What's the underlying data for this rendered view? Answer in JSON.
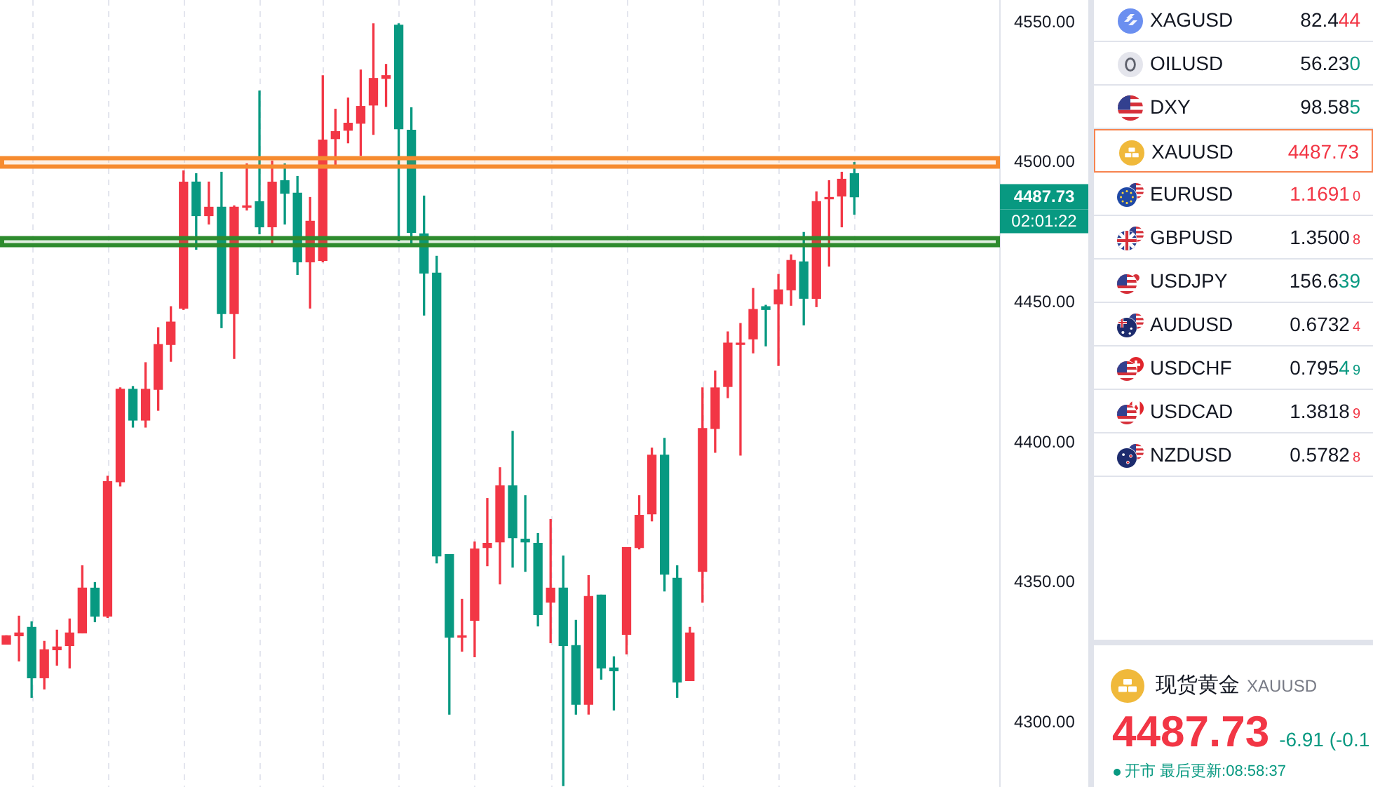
{
  "chart_data": [
    {
      "type": "candlestick",
      "tick_labels": "y",
      "grid": "x",
      "categories": [
        null,
        null,
        null,
        null,
        null,
        null,
        null,
        null,
        null,
        null,
        null,
        null,
        null,
        null,
        null,
        null,
        null,
        null,
        null,
        null,
        null,
        null,
        null,
        null,
        null,
        null,
        null,
        null,
        null,
        null,
        null,
        null,
        null,
        null,
        null,
        null,
        null,
        null,
        null,
        null,
        null,
        null,
        null,
        null,
        null,
        null,
        null,
        null,
        null,
        null,
        null,
        null,
        null,
        null,
        null,
        null,
        null,
        null,
        null,
        null,
        null,
        null,
        null,
        null,
        null,
        null,
        null,
        null,
        null,
        null,
        null,
        null,
        null,
        null,
        null,
        null,
        null,
        null,
        null
      ],
      "ohlc": [
        [
          4328,
          4331,
          4328,
          4331
        ],
        [
          4331,
          4338,
          4322,
          4332
        ],
        [
          4334,
          4336,
          4309,
          4316
        ],
        [
          4316,
          4329,
          4312,
          4326
        ],
        [
          4326,
          4333,
          4320.5,
          4327
        ],
        [
          4327.5,
          4337,
          4319.5,
          4332
        ],
        [
          4332,
          4356,
          4332,
          4348
        ],
        [
          4348,
          4350,
          4336,
          4338
        ],
        [
          4338,
          4388,
          4337.5,
          4386
        ],
        [
          4386,
          4419.5,
          4384.5,
          4419
        ],
        [
          4419,
          4420,
          4405.5,
          4408
        ],
        [
          4408,
          4428.5,
          4405.5,
          4419
        ],
        [
          4419,
          4441,
          4411.5,
          4435
        ],
        [
          4435,
          4448.5,
          4429,
          4443
        ],
        [
          4448,
          4497,
          4447.5,
          4493
        ],
        [
          4493,
          4496,
          4469,
          4481
        ],
        [
          4481,
          4493,
          4478,
          4484
        ],
        [
          4484,
          4496.5,
          4441,
          4446
        ],
        [
          4446,
          4484.5,
          4430,
          4484
        ],
        [
          4484,
          4499.5,
          4483,
          4484.5
        ],
        [
          4486,
          4525.5,
          4474.5,
          4477
        ],
        [
          4477,
          4500.5,
          4471,
          4493
        ],
        [
          4493.5,
          4499.5,
          4478,
          4489
        ],
        [
          4489,
          4495,
          4460,
          4464.5
        ],
        [
          4464.5,
          4487.5,
          4448,
          4479
        ],
        [
          4465,
          4531,
          4464.5,
          4508
        ],
        [
          4508.5,
          4519,
          4499,
          4511
        ],
        [
          4511.5,
          4523,
          4507,
          4514
        ],
        [
          4514,
          4533,
          4502.5,
          4520
        ],
        [
          4520.5,
          4549.5,
          4510,
          4530
        ],
        [
          4530,
          4535,
          4520,
          4531
        ],
        [
          4549,
          4549.5,
          4472,
          4512
        ],
        [
          4511.5,
          4519.5,
          4471,
          4475
        ],
        [
          4474.5,
          4488,
          4445.5,
          4460.5
        ],
        [
          4460.5,
          4466.5,
          4357,
          4359.5
        ],
        [
          4360,
          4360,
          4303,
          4330.5
        ],
        [
          4330.5,
          4344,
          4325.5,
          4331
        ],
        [
          4336.5,
          4364.5,
          4323.5,
          4362
        ],
        [
          4362.5,
          4380,
          4356,
          4364
        ],
        [
          4364.5,
          4391,
          4349.5,
          4384.5
        ],
        [
          4384.5,
          4404,
          4355.5,
          4366
        ],
        [
          4365.5,
          4381,
          4354,
          4364.5
        ],
        [
          4364,
          4367.5,
          4334.5,
          4338.5
        ],
        [
          4343,
          4372.5,
          4328.5,
          4348
        ],
        [
          4348,
          4359.5,
          4277.5,
          4327.5
        ],
        [
          4327.5,
          4336.5,
          4303,
          4306.5
        ],
        [
          4306.5,
          4352.5,
          4303,
          4345
        ],
        [
          4345.5,
          4345.5,
          4315.5,
          4319.5
        ],
        [
          4319.5,
          4323.5,
          4304.5,
          4318.5
        ],
        [
          4331.5,
          4362.5,
          4324.5,
          4362.5
        ],
        [
          4362.5,
          4381,
          4362,
          4374
        ],
        [
          4374.5,
          4398,
          4372,
          4395.5
        ],
        [
          4395.5,
          4401.5,
          4347,
          4353
        ],
        [
          4351.5,
          4356,
          4309,
          4314.5
        ],
        [
          4315,
          4334,
          4315,
          4332
        ],
        [
          4354,
          4419.5,
          4343,
          4405
        ],
        [
          4405,
          4425.5,
          4396.5,
          4419.5
        ],
        [
          4420,
          4439.5,
          4416,
          4435.5
        ],
        [
          4435,
          4442.5,
          4395.5,
          4435.5
        ],
        [
          4437,
          4455,
          4432,
          4447.5
        ],
        [
          4448.5,
          4449,
          4434.5,
          4447.5
        ],
        [
          4449.5,
          4460,
          4427.5,
          4454.5
        ],
        [
          4454.5,
          4467,
          4449,
          4465
        ],
        [
          4464.5,
          4475,
          4442,
          4451.5
        ],
        [
          4451.5,
          4489.5,
          4448.5,
          4486
        ],
        [
          4487,
          4493.5,
          4463,
          4487.5
        ],
        [
          4488,
          4496.5,
          4477,
          4494
        ],
        [
          4496,
          4500,
          4481.5,
          4487.73
        ],
        null,
        null,
        null,
        null,
        null,
        null,
        null,
        null,
        null,
        null,
        null
      ],
      "colors": [
        "#f23645",
        "#f23645",
        "#089981",
        "#f23645",
        "#f23645",
        "#f23645",
        "#f23645",
        "#089981",
        "#f23645",
        "#f23645",
        "#089981",
        "#f23645",
        "#f23645",
        "#f23645",
        "#f23645",
        "#089981",
        "#f23645",
        "#089981",
        "#f23645",
        "#f23645",
        "#089981",
        "#f23645",
        "#089981",
        "#089981",
        "#f23645",
        "#f23645",
        "#f23645",
        "#f23645",
        "#f23645",
        "#f23645",
        "#f23645",
        "#089981",
        "#089981",
        "#089981",
        "#089981",
        "#089981",
        "#f23645",
        "#f23645",
        "#f23645",
        "#f23645",
        "#089981",
        "#089981",
        "#089981",
        "#f23645",
        "#089981",
        "#089981",
        "#f23645",
        "#089981",
        "#089981",
        "#f23645",
        "#f23645",
        "#f23645",
        "#089981",
        "#089981",
        "#f23645",
        "#f23645",
        "#f23645",
        "#f23645",
        "#f23645",
        "#f23645",
        "#089981",
        "#f23645",
        "#f23645",
        "#089981",
        "#f23645",
        "#f23645",
        "#f23645",
        "#089981",
        null,
        null,
        null,
        null,
        null,
        null,
        null,
        null,
        null,
        null,
        null
      ],
      "ylim": [
        4277,
        4558
      ],
      "yticks": [
        {
          "value": 4300,
          "label": "4300.00"
        },
        {
          "value": 4350,
          "label": "4350.00"
        },
        {
          "value": 4400,
          "label": "4400.00"
        },
        {
          "value": 4450,
          "label": "4450.00"
        },
        {
          "value": 4500,
          "label": "4500.00"
        },
        {
          "value": 4550,
          "label": "4550.00"
        }
      ],
      "bands": [
        {
          "axis": "y",
          "from": 4498.5,
          "to": 4501.5,
          "color": "#f68b2f"
        },
        {
          "axis": "y",
          "from": 4470.5,
          "to": 4473,
          "color": "#2e8b2e"
        }
      ],
      "annotations": [
        "4487.73",
        "02:01:22"
      ]
    },
    {
      "type": "other",
      "categories": [
        "XAGUSD",
        "OILUSD",
        "DXY",
        "XAUUSD",
        "EURUSD",
        "GBPUSD",
        "USDJPY",
        "AUDUSD",
        "USDCHF",
        "USDCAD",
        "NZDUSD"
      ],
      "value_labels": [
        "82.444",
        "56.230",
        "98.585",
        "4487.73",
        "1.16910",
        "1.35008",
        "156.639",
        "0.67324",
        "0.79549",
        "1.38189",
        "0.57828"
      ],
      "colors": [
        "#f23645",
        "#089981",
        "#089981",
        "#f23645",
        "#f23645",
        "#f23645",
        "#089981",
        "#f23645",
        "#089981",
        "#f23645",
        "#f23645"
      ]
    },
    {
      "type": "other",
      "title": "现货黄金",
      "subtitle": "XAUUSD",
      "annotations": [
        "4487.73",
        "-6.91 (-0.1",
        "开市 最后更新:08:58:37"
      ]
    }
  ]
}
